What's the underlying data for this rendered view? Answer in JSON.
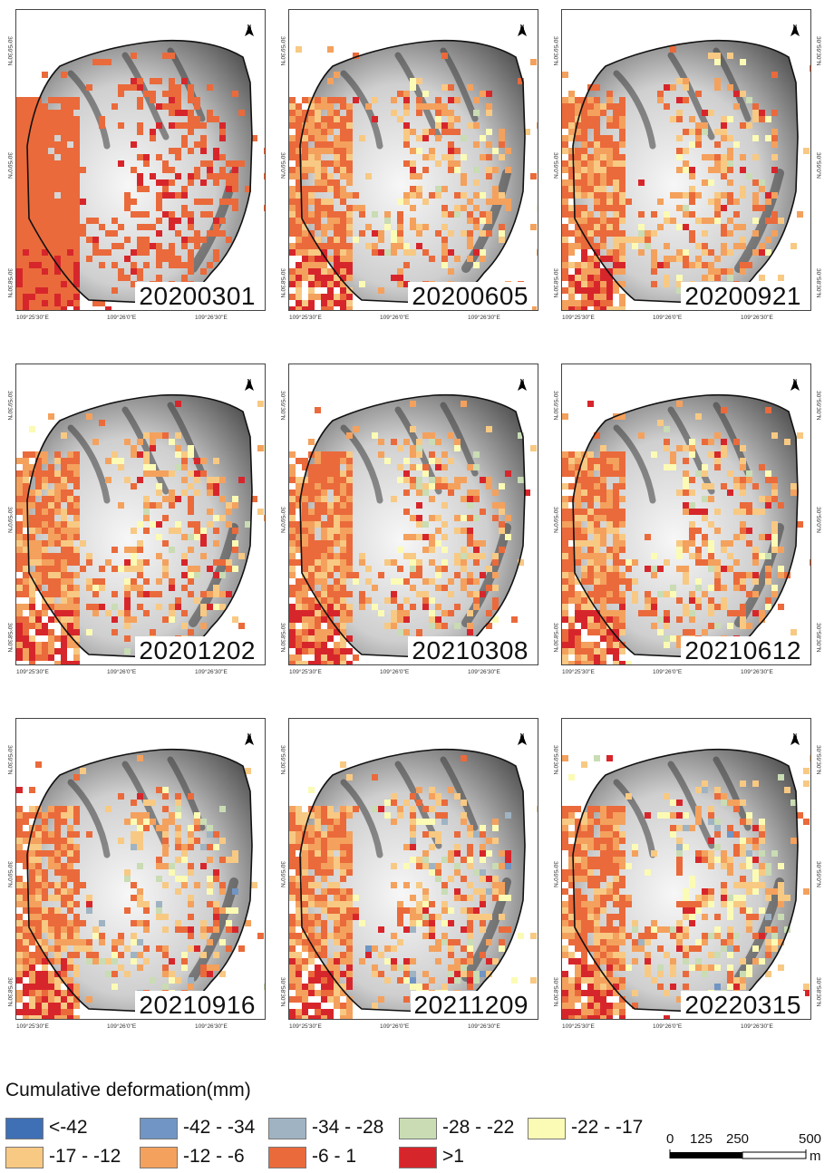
{
  "panels": [
    {
      "date": "20200301"
    },
    {
      "date": "20200605"
    },
    {
      "date": "20200921"
    },
    {
      "date": "20201202"
    },
    {
      "date": "20210308"
    },
    {
      "date": "20210612"
    },
    {
      "date": "20210916"
    },
    {
      "date": "20211209"
    },
    {
      "date": "20220315"
    }
  ],
  "axis": {
    "x_ticks": [
      "109°25'30\"E",
      "109°26'0\"E",
      "109°26'30\"E"
    ],
    "y_ticks": [
      "30°59'30\"N",
      "30°59'0\"N",
      "30°58'30\"N"
    ],
    "north_label": "N"
  },
  "legend": {
    "title": "Cumulative deformation(mm)",
    "classes": [
      {
        "label": "<-42",
        "color": "#3f6fb5"
      },
      {
        "label": "-42 - -34",
        "color": "#7195c4"
      },
      {
        "label": "-34 - -28",
        "color": "#9fb3c2"
      },
      {
        "label": "-28 - -22",
        "color": "#c9dcb4"
      },
      {
        "label": "-22 - -17",
        "color": "#fbfbb5"
      },
      {
        "label": "-17 - -12",
        "color": "#f8c983"
      },
      {
        "label": "-12 - -6",
        "color": "#f4a15d"
      },
      {
        "label": "-6 - 1",
        "color": "#ea6a3b"
      },
      {
        "label": ">1",
        "color": "#d7262b"
      }
    ]
  },
  "scalebar": {
    "labels": [
      "0",
      "125",
      "250",
      "500"
    ],
    "unit": "m"
  },
  "colors": {
    "boundary": "#111111",
    "hillshade_light": "#f2f2f2",
    "hillshade_dark": "#555555"
  }
}
